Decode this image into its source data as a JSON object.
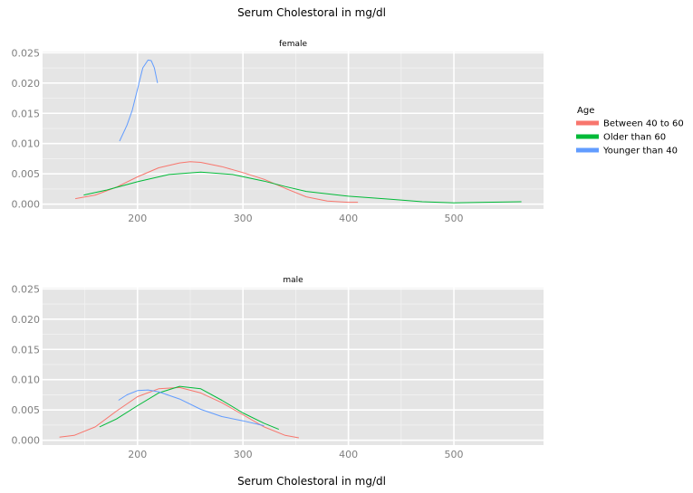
{
  "chart_data": {
    "type": "line",
    "title": "Serum Cholestoral in mg/dl",
    "xlabel": "Serum Cholestoral in mg/dl",
    "ylabel": "",
    "xlim": [
      110,
      585
    ],
    "ylim": [
      -0.0008,
      0.0252
    ],
    "x_ticks": [
      200,
      300,
      400,
      500
    ],
    "x_tick_labels": [
      "200",
      "300",
      "400",
      "500"
    ],
    "y_ticks": [
      0,
      0.005,
      0.01,
      0.015,
      0.02,
      0.025
    ],
    "y_tick_labels": [
      "0.000",
      "0.005",
      "0.010",
      "0.015",
      "0.020",
      "0.025"
    ],
    "grid": true,
    "legend": {
      "title": "Age",
      "position": "right",
      "entries": [
        "Between 40 to 60",
        "Older than 60",
        "Younger than 40"
      ]
    },
    "colors": {
      "Between 40 to 60": "#f8766d",
      "Older than 60": "#00ba38",
      "Younger than 40": "#619cff"
    },
    "panels": [
      {
        "label": "female",
        "series": [
          {
            "name": "Between 40 to 60",
            "x": [
              141,
              160,
              180,
              200,
              220,
              240,
              250,
              260,
              280,
              300,
              320,
              340,
              360,
              380,
              400,
              409
            ],
            "y": [
              0.0009,
              0.0015,
              0.0028,
              0.0045,
              0.006,
              0.0068,
              0.007,
              0.0069,
              0.0062,
              0.0052,
              0.0041,
              0.0026,
              0.0012,
              0.0005,
              0.0003,
              0.0003
            ]
          },
          {
            "name": "Older than 60",
            "x": [
              149,
              170,
              200,
              230,
              260,
              290,
              320,
              340,
              360,
              400,
              440,
              470,
              500,
              530,
              564
            ],
            "y": [
              0.0015,
              0.0023,
              0.0037,
              0.0049,
              0.0053,
              0.0049,
              0.0038,
              0.0029,
              0.0021,
              0.0013,
              0.0008,
              0.0004,
              0.0002,
              0.0003,
              0.0004
            ]
          },
          {
            "name": "Younger than 40",
            "x": [
              183,
              190,
              195,
              200,
              205,
              210,
              213,
              216,
              219
            ],
            "y": [
              0.0104,
              0.013,
              0.0155,
              0.019,
              0.0225,
              0.0238,
              0.0237,
              0.0225,
              0.02
            ]
          }
        ]
      },
      {
        "label": "male",
        "series": [
          {
            "name": "Between 40 to 60",
            "x": [
              126,
              140,
              160,
              180,
              200,
              220,
              240,
              260,
              280,
              300,
              320,
              340,
              353
            ],
            "y": [
              0.0005,
              0.0008,
              0.0022,
              0.0048,
              0.0072,
              0.0085,
              0.0087,
              0.0078,
              0.0062,
              0.0042,
              0.0022,
              0.0008,
              0.0004
            ]
          },
          {
            "name": "Older than 60",
            "x": [
              164,
              180,
              200,
              220,
              240,
              260,
              280,
              300,
              320,
              334
            ],
            "y": [
              0.0022,
              0.0035,
              0.0057,
              0.0078,
              0.0089,
              0.0085,
              0.0066,
              0.0045,
              0.0028,
              0.0018
            ]
          },
          {
            "name": "Younger than 40",
            "x": [
              182,
              190,
              200,
              210,
              220,
              240,
              260,
              280,
              300,
              320
            ],
            "y": [
              0.0066,
              0.0075,
              0.0082,
              0.0083,
              0.008,
              0.0068,
              0.0051,
              0.0039,
              0.0032,
              0.0024
            ]
          }
        ]
      }
    ]
  }
}
